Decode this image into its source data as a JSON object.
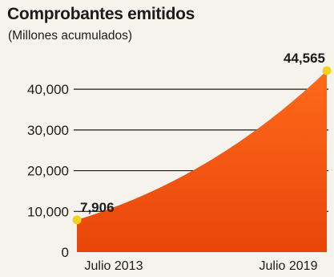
{
  "chart_data": {
    "type": "area",
    "title": "Comprobantes emitidos",
    "subtitle": "(Millones acumulados)",
    "x": [
      "Julio 2013",
      "Julio 2019"
    ],
    "values": [
      7906,
      44565
    ],
    "data_labels": [
      "7,906",
      "44,565"
    ],
    "y_ticks": [
      0,
      10000,
      20000,
      30000,
      40000
    ],
    "y_tick_labels": [
      "0",
      "10,000",
      "20,000",
      "30,000",
      "40,000"
    ],
    "ylim": [
      0,
      44565
    ],
    "grid": true,
    "colors": {
      "fill_top": "#ff6a1a",
      "fill_bottom": "#e8450a",
      "marker": "#f3d21c",
      "grid": "#1a1a1a",
      "text": "#1c1c1c"
    }
  }
}
